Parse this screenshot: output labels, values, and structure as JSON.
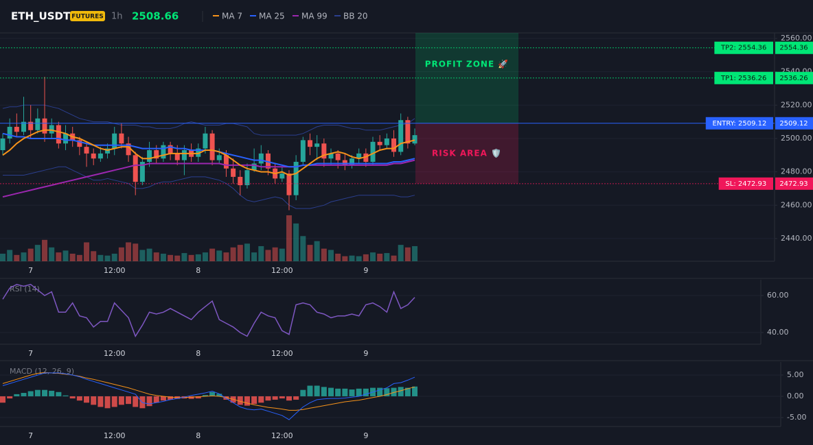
{
  "header": {
    "symbol": "ETH_USDT",
    "badge": "FUTURES",
    "interval": "1h",
    "price": "2508.66"
  },
  "chart_data": [
    {
      "type": "candlestick",
      "categories": [
        null,
        null,
        null,
        null,
        "7",
        null,
        null,
        null,
        null,
        null,
        null,
        null,
        null,
        null,
        null,
        null,
        "12:00",
        null,
        null,
        null,
        null,
        null,
        null,
        null,
        null,
        null,
        null,
        null,
        "8",
        null,
        null,
        null,
        null,
        null,
        null,
        null,
        null,
        null,
        null,
        null,
        "12:00",
        null,
        null,
        null,
        null,
        null,
        null,
        null,
        null,
        null,
        null,
        null,
        "9",
        null,
        null,
        null,
        null,
        null,
        null,
        null
      ],
      "open": [
        2493,
        2500,
        2507,
        2504,
        2510,
        2505,
        2512,
        2503,
        2508,
        2497,
        2503,
        2499,
        2495,
        2491,
        2488,
        2491,
        2494,
        2503,
        2497,
        2490,
        2474,
        2486,
        2493,
        2488,
        2496,
        2491,
        2487,
        2493,
        2489,
        2494,
        2503,
        2487,
        2490,
        2482,
        2477,
        2472,
        2481,
        2485,
        2491,
        2482,
        2476,
        2479,
        2466,
        2486,
        2499,
        2495,
        2497,
        2488,
        2491,
        2487,
        2484,
        2488,
        2491,
        2486,
        2498,
        2496,
        2500,
        2492,
        2511,
        2497
      ],
      "high": [
        2503,
        2512,
        2515,
        2525,
        2520,
        2518,
        2537,
        2512,
        2510,
        2508,
        2507,
        2501,
        2498,
        2494,
        2495,
        2497,
        2507,
        2509,
        2501,
        2492,
        2489,
        2498,
        2496,
        2498,
        2498,
        2496,
        2496,
        2497,
        2497,
        2507,
        2505,
        2494,
        2493,
        2488,
        2481,
        2485,
        2494,
        2496,
        2493,
        2485,
        2483,
        2481,
        2490,
        2501,
        2503,
        2502,
        2500,
        2494,
        2493,
        2491,
        2490,
        2494,
        2494,
        2501,
        2502,
        2503,
        2505,
        2515,
        2513,
        2506
      ],
      "low": [
        2490,
        2497,
        2501,
        2502,
        2500,
        2503,
        2498,
        2500,
        2494,
        2493,
        2495,
        2490,
        2483,
        2484,
        2486,
        2488,
        2490,
        2494,
        2486,
        2466,
        2472,
        2483,
        2485,
        2486,
        2487,
        2484,
        2478,
        2486,
        2486,
        2491,
        2484,
        2485,
        2477,
        2473,
        2466,
        2470,
        2480,
        2481,
        2478,
        2473,
        2474,
        2457,
        2463,
        2484,
        2490,
        2487,
        2483,
        2484,
        2482,
        2481,
        2482,
        2485,
        2483,
        2484,
        2493,
        2494,
        2489,
        2490,
        2494,
        2496
      ],
      "close": [
        2500,
        2507,
        2504,
        2510,
        2505,
        2512,
        2503,
        2508,
        2497,
        2503,
        2499,
        2495,
        2491,
        2488,
        2491,
        2494,
        2503,
        2497,
        2490,
        2474,
        2486,
        2493,
        2488,
        2496,
        2491,
        2487,
        2493,
        2489,
        2494,
        2503,
        2487,
        2490,
        2482,
        2477,
        2472,
        2481,
        2485,
        2491,
        2482,
        2476,
        2479,
        2466,
        2486,
        2499,
        2495,
        2497,
        2488,
        2491,
        2487,
        2484,
        2488,
        2491,
        2486,
        2498,
        2496,
        2500,
        2492,
        2511,
        2497,
        2502
      ],
      "volume": [
        12,
        18,
        10,
        14,
        20,
        26,
        34,
        22,
        14,
        17,
        12,
        10,
        30,
        16,
        10,
        9,
        12,
        22,
        30,
        28,
        18,
        20,
        14,
        12,
        10,
        9,
        13,
        10,
        11,
        14,
        20,
        17,
        14,
        22,
        26,
        28,
        14,
        24,
        18,
        22,
        20,
        73,
        60,
        40,
        26,
        32,
        20,
        18,
        12,
        8,
        9,
        8,
        11,
        14,
        12,
        13,
        9,
        26,
        22,
        24
      ],
      "up_color": "#26a69a",
      "down_color": "#ef5350",
      "series": [
        {
          "name": "MA 7",
          "color": "#f7931a",
          "values": [
            2490,
            2493,
            2497,
            2500,
            2502,
            2504,
            2505,
            2505,
            2504,
            2503,
            2501,
            2500,
            2498,
            2496,
            2494,
            2493,
            2494,
            2495,
            2495,
            2491,
            2488,
            2488,
            2489,
            2490,
            2491,
            2491,
            2491,
            2491,
            2491,
            2493,
            2493,
            2492,
            2490,
            2487,
            2484,
            2482,
            2481,
            2480,
            2480,
            2479,
            2480,
            2478,
            2479,
            2482,
            2485,
            2488,
            2490,
            2491,
            2492,
            2491,
            2489,
            2488,
            2489,
            2491,
            2493,
            2494,
            2494,
            2497,
            2498,
            2499
          ]
        },
        {
          "name": "MA 25",
          "color": "#2962ff",
          "values": [
            2503,
            2502,
            2501,
            2501,
            2500,
            2500,
            2500,
            2500,
            2500,
            2499,
            2499,
            2498,
            2497,
            2496,
            2496,
            2496,
            2496,
            2496,
            2496,
            2495,
            2494,
            2494,
            2494,
            2494,
            2495,
            2494,
            2494,
            2493,
            2493,
            2493,
            2493,
            2492,
            2491,
            2490,
            2489,
            2488,
            2487,
            2487,
            2486,
            2485,
            2484,
            2483,
            2483,
            2484,
            2484,
            2485,
            2485,
            2485,
            2485,
            2485,
            2485,
            2485,
            2485,
            2485,
            2485,
            2485,
            2486,
            2486,
            2487,
            2488
          ]
        },
        {
          "name": "MA 99",
          "color": "#9c27b0",
          "values": [
            2465,
            2466,
            2467,
            2468,
            2469,
            2470,
            2471,
            2472,
            2473,
            2474,
            2475,
            2476,
            2477,
            2478,
            2479,
            2480,
            2481,
            2482,
            2483,
            2484,
            2484,
            2485,
            2485,
            2485,
            2485,
            2485,
            2485,
            2485,
            2485,
            2485,
            2485,
            2485,
            2484,
            2484,
            2484,
            2484,
            2484,
            2483,
            2483,
            2483,
            2483,
            2483,
            2483,
            2484,
            2484,
            2484,
            2484,
            2484,
            2484,
            2484,
            2484,
            2484,
            2484,
            2484,
            2484,
            2484,
            2485,
            2485,
            2486,
            2487
          ]
        },
        {
          "name": "BB 20",
          "color": "#2b3f8f",
          "upper": [
            2518,
            2519,
            2519,
            2520,
            2520,
            2520,
            2520,
            2519,
            2518,
            2516,
            2514,
            2512,
            2511,
            2510,
            2510,
            2510,
            2509,
            2508,
            2508,
            2508,
            2507,
            2507,
            2506,
            2506,
            2506,
            2507,
            2509,
            2510,
            2509,
            2508,
            2508,
            2508,
            2509,
            2509,
            2508,
            2507,
            2503,
            2502,
            2502,
            2502,
            2502,
            2502,
            2502,
            2503,
            2505,
            2507,
            2508,
            2508,
            2508,
            2507,
            2506,
            2506,
            2505,
            2505,
            2505,
            2506,
            2507,
            2508,
            2509,
            2512
          ],
          "lower": [
            2478,
            2478,
            2478,
            2478,
            2479,
            2480,
            2481,
            2482,
            2483,
            2483,
            2481,
            2479,
            2477,
            2475,
            2475,
            2476,
            2475,
            2474,
            2473,
            2470,
            2470,
            2471,
            2473,
            2474,
            2474,
            2475,
            2476,
            2477,
            2477,
            2477,
            2476,
            2475,
            2473,
            2470,
            2466,
            2463,
            2462,
            2463,
            2464,
            2465,
            2464,
            2460,
            2458,
            2458,
            2458,
            2459,
            2460,
            2462,
            2463,
            2464,
            2465,
            2466,
            2466,
            2466,
            2466,
            2466,
            2466,
            2465,
            2465,
            2466
          ]
        }
      ],
      "levels": [
        {
          "label": "TP2: 2554.36",
          "value": 2554.36,
          "value_label": "2554.36",
          "color": "#00e676"
        },
        {
          "label": "TP1: 2536.26",
          "value": 2536.26,
          "value_label": "2536.26",
          "color": "#00e676"
        },
        {
          "label": "ENTRY: 2509.12",
          "value": 2509.12,
          "value_label": "2509.12",
          "color": "#2962ff"
        },
        {
          "label": "SL: 2472.93",
          "value": 2472.93,
          "value_label": "2472.93",
          "color": "#f0175a"
        }
      ],
      "zones": [
        {
          "label": "PROFIT ZONE 🚀",
          "color": "#00e676"
        },
        {
          "label": "RISK AREA 🛡️",
          "color": "#f0175a"
        }
      ],
      "ylim": [
        2426.4,
        2563.3
      ],
      "yticks": [
        {
          "value": 2440,
          "label": "2440.00"
        },
        {
          "value": 2460,
          "label": "2460.00"
        },
        {
          "value": 2480,
          "label": "2480.00"
        },
        {
          "value": 2500,
          "label": "2500.00"
        },
        {
          "value": 2520,
          "label": "2520.00"
        },
        {
          "value": 2540,
          "label": "2540.00"
        },
        {
          "value": 2560,
          "label": "2560.00"
        }
      ],
      "grid": true
    },
    {
      "type": "line",
      "title": "RSI (14)",
      "color": "#7e57c2",
      "values": [
        58,
        64,
        66,
        65,
        66,
        63,
        60,
        62,
        51,
        51,
        56,
        49,
        48,
        43,
        46,
        46,
        56,
        52,
        48,
        38,
        44,
        51,
        50,
        51,
        53,
        51,
        49,
        47,
        51,
        54,
        57,
        47,
        45,
        43,
        40,
        38,
        45,
        51,
        49,
        48,
        41,
        39,
        55,
        56,
        55,
        51,
        50,
        48,
        49,
        49,
        50,
        49,
        55,
        56,
        54,
        51,
        62,
        53,
        55,
        59
      ],
      "ylim": [
        33.7,
        68.5
      ],
      "yticks": [
        {
          "value": 40,
          "label": "40.00"
        },
        {
          "value": 60,
          "label": "60.00"
        }
      ],
      "grid": true
    },
    {
      "type": "macd",
      "title": "MACD (12, 26, 9)",
      "macd": {
        "color": "#2962ff",
        "values": [
          2.5,
          3,
          3.5,
          4,
          4.5,
          5,
          5.5,
          5.5,
          5.5,
          5.3,
          5,
          4.6,
          4,
          3.5,
          3,
          2.5,
          2,
          1.5,
          1,
          0.5,
          -1.5,
          -1.8,
          -1.5,
          -1.2,
          -0.8,
          -0.5,
          -0.2,
          0.2,
          0.5,
          0.8,
          1.2,
          0.6,
          -0.5,
          -1.5,
          -2.5,
          -3,
          -3.2,
          -3,
          -3.5,
          -4,
          -4.5,
          -5.5,
          -4,
          -2.5,
          -1.5,
          -0.8,
          -0.6,
          -0.5,
          -0.5,
          -0.4,
          -0.2,
          0,
          0.5,
          1,
          1.5,
          2,
          3,
          3.2,
          3.8,
          4.5
        ]
      },
      "signal": {
        "color": "#f7931a",
        "values": [
          3,
          3.5,
          4,
          4.5,
          5,
          5.4,
          5.6,
          5.5,
          5.4,
          5.2,
          5,
          4.7,
          4.3,
          4,
          3.6,
          3.2,
          2.8,
          2.4,
          2,
          1.5,
          1,
          0.5,
          0.2,
          0,
          -0.2,
          -0.3,
          -0.3,
          -0.2,
          -0.1,
          0,
          0.1,
          0,
          -0.3,
          -0.7,
          -1.2,
          -1.6,
          -2,
          -2.3,
          -2.6,
          -2.8,
          -3,
          -3.3,
          -3.3,
          -3.1,
          -2.8,
          -2.5,
          -2.2,
          -1.9,
          -1.6,
          -1.3,
          -1.1,
          -0.9,
          -0.6,
          -0.3,
          0,
          0.4,
          0.9,
          1.3,
          1.8,
          2.2
        ]
      },
      "histogram": {
        "up_color": "#26a69a",
        "down_color": "#ef5350",
        "values": [
          -1.5,
          -0.5,
          0.5,
          0.8,
          1.2,
          1.5,
          1.5,
          1.3,
          1,
          0.2,
          -0.5,
          -1,
          -1.5,
          -2,
          -2.5,
          -2.8,
          -2.5,
          -2,
          -1.8,
          -2.5,
          -2.8,
          -2.3,
          -1.5,
          -1,
          -0.8,
          -0.6,
          -0.5,
          -0.6,
          -0.5,
          0.3,
          1,
          0.6,
          -0.8,
          -1.5,
          -2,
          -2.2,
          -1.8,
          -1.5,
          -1,
          -0.8,
          -0.5,
          -1,
          -0.8,
          1.5,
          2.5,
          2.5,
          2.2,
          2,
          1.8,
          1.8,
          1.6,
          1.8,
          1.8,
          2,
          2,
          1.9,
          2,
          2.2,
          2,
          2.3
        ]
      },
      "ylim": [
        -7.1,
        8.06
      ],
      "yticks": [
        {
          "value": -5,
          "label": "-5.00"
        },
        {
          "value": 0,
          "label": "0.00"
        },
        {
          "value": 5,
          "label": "5.00"
        }
      ],
      "grid": true
    }
  ]
}
